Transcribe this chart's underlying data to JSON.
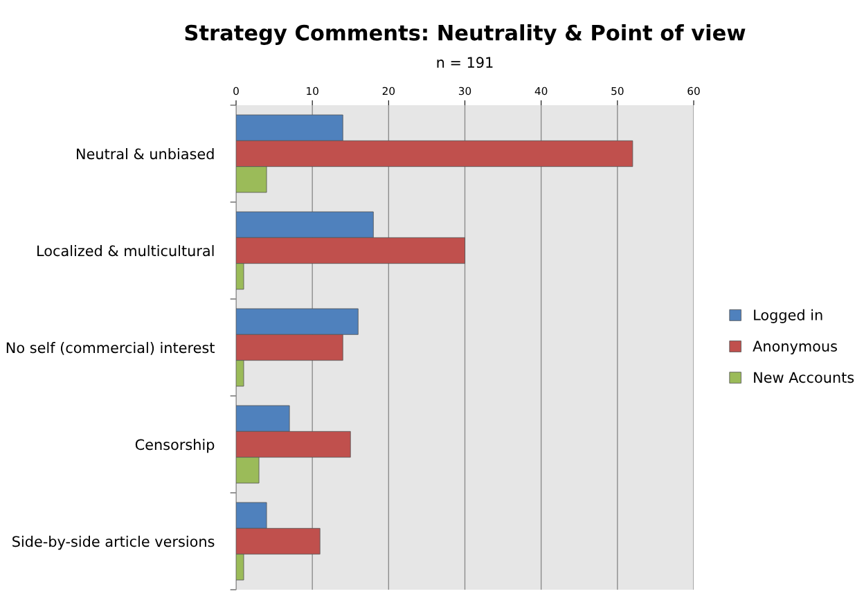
{
  "chart_data": {
    "type": "bar",
    "orientation": "horizontal",
    "title": "Strategy Comments: Neutrality & Point of view",
    "subtitle": "n = 191",
    "categories": [
      "Neutral & unbiased",
      "Localized & multicultural",
      "No self (commercial) interest",
      "Censorship",
      "Side-by-side article versions"
    ],
    "series": [
      {
        "name": "Logged in",
        "color": "#4f81bd",
        "values": [
          14,
          18,
          16,
          7,
          4
        ]
      },
      {
        "name": "Anonymous",
        "color": "#c0504d",
        "values": [
          52,
          30,
          14,
          15,
          11
        ]
      },
      {
        "name": "New Accounts",
        "color": "#9bbb59",
        "values": [
          4,
          1,
          1,
          3,
          1
        ]
      }
    ],
    "xlim": [
      0,
      60
    ],
    "xticks": [
      0,
      10,
      20,
      30,
      40,
      50,
      60
    ],
    "grid": "x",
    "legend": "right"
  }
}
